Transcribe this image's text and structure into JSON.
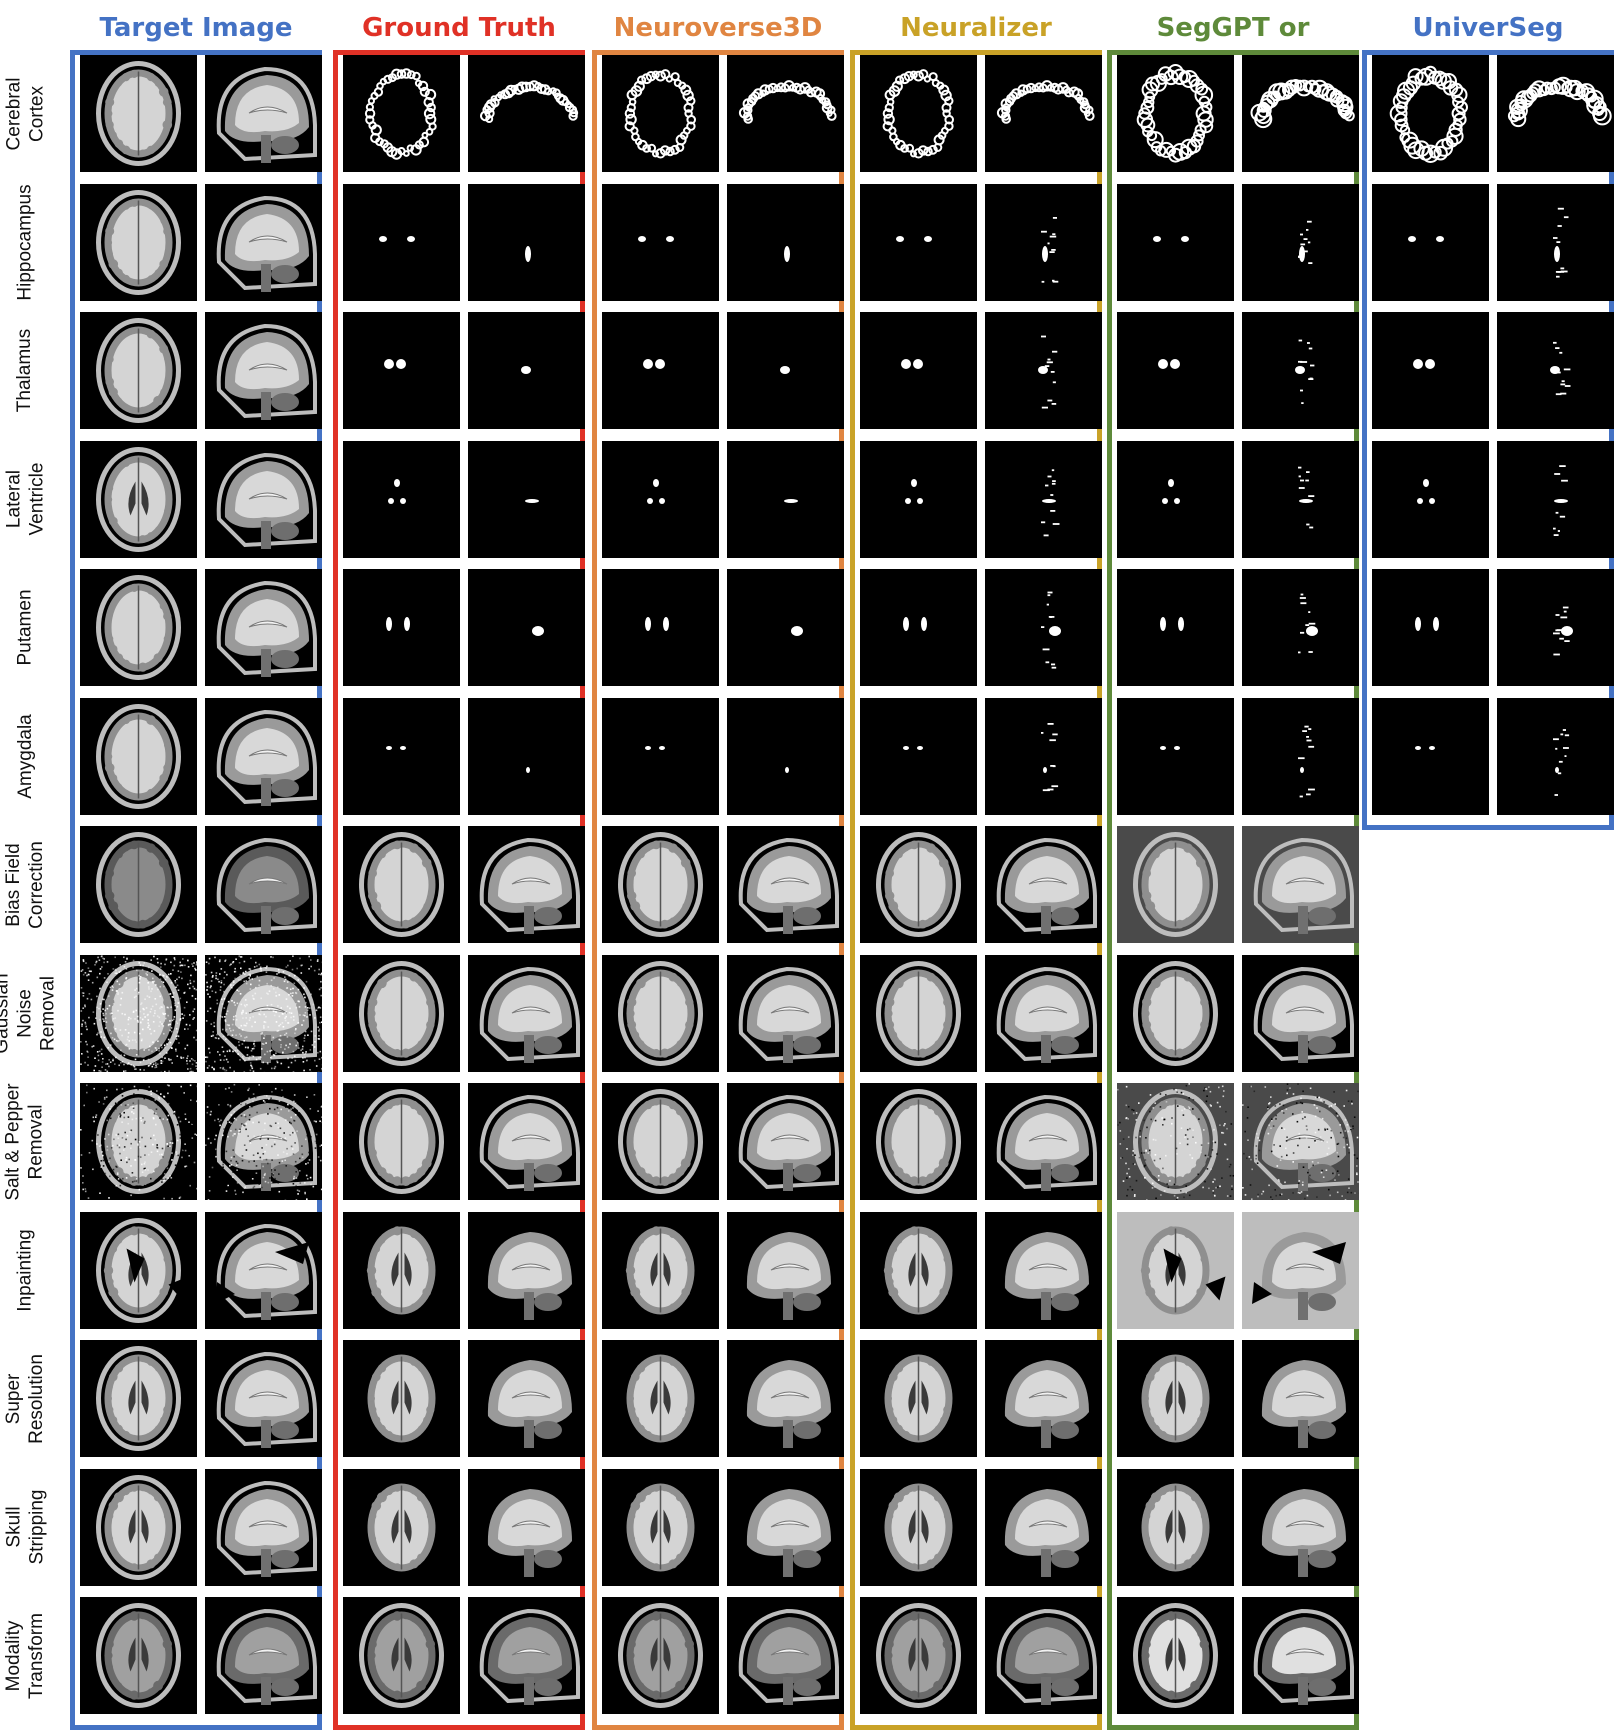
{
  "columns": [
    {
      "key": "target",
      "title": "Target Image",
      "color": "#4472C4"
    },
    {
      "key": "gt",
      "title": "Ground Truth",
      "color": "#E03126"
    },
    {
      "key": "neuroverse",
      "title": "Neuroverse3D",
      "color": "#E08541"
    },
    {
      "key": "neuralizer",
      "title": "Neuralizer",
      "color": "#C9A227"
    },
    {
      "key": "seggpt",
      "title": "SegGPT or Painter",
      "color": "#5E8A3A"
    },
    {
      "key": "universeg",
      "title": "UniverSeg",
      "color": "#4472C4"
    }
  ],
  "rows": [
    {
      "label": "Cerebral\nCortex",
      "task": "segmentation"
    },
    {
      "label": "Hippocampus",
      "task": "segmentation"
    },
    {
      "label": "Thalamus",
      "task": "segmentation"
    },
    {
      "label": "Lateral\nVentricle",
      "task": "segmentation"
    },
    {
      "label": "Putamen",
      "task": "segmentation"
    },
    {
      "label": "Amygdala",
      "task": "segmentation"
    },
    {
      "label": "Bias Field\nCorrection",
      "task": "restoration"
    },
    {
      "label": "Gaussian\nNoise\nRemoval",
      "task": "restoration"
    },
    {
      "label": "Salt & Pepper\nRemoval",
      "task": "restoration"
    },
    {
      "label": "Inpainting",
      "task": "restoration"
    },
    {
      "label": "Super\nResolution",
      "task": "restoration"
    },
    {
      "label": "Skull\nStripping",
      "task": "restoration"
    },
    {
      "label": "Modality\nTransform",
      "task": "restoration"
    }
  ]
}
